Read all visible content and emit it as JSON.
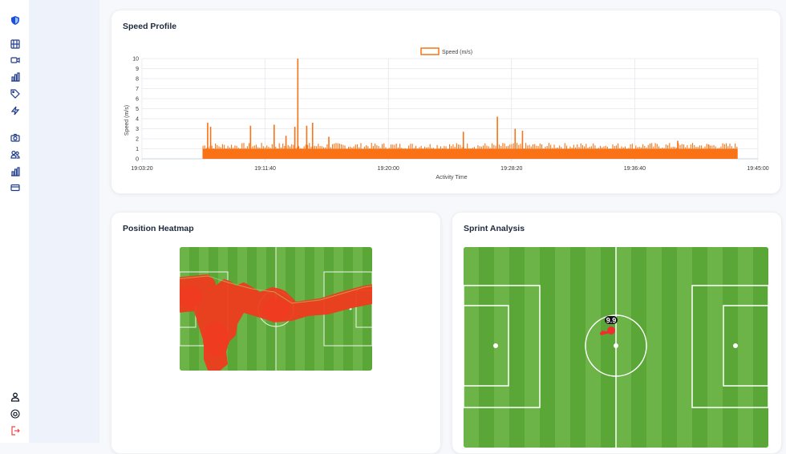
{
  "sidebar": {
    "items": [
      {
        "icon": "shield-logo-icon"
      },
      {
        "icon": "film-icon"
      },
      {
        "icon": "video-icon"
      },
      {
        "icon": "bar-chart-icon"
      },
      {
        "icon": "tag-icon"
      },
      {
        "icon": "lightning-icon"
      },
      {
        "icon": "camera-icon"
      },
      {
        "icon": "users-icon"
      },
      {
        "icon": "bar-chart-alt-icon"
      },
      {
        "icon": "credit-card-icon"
      },
      {
        "icon": "user-icon"
      },
      {
        "icon": "football-icon"
      },
      {
        "icon": "logout-icon"
      }
    ]
  },
  "speed_card": {
    "title": "Speed Profile"
  },
  "heatmap_card": {
    "title": "Position Heatmap"
  },
  "sprint_card": {
    "title": "Sprint Analysis",
    "marker_label": "9.9"
  },
  "colors": {
    "accent": "#f97316",
    "heat": "#ef3b1f",
    "pitch_dark": "#5aa637",
    "pitch_light": "#6cb447"
  },
  "chart_data": {
    "type": "bar",
    "legend": "Speed (m/s)",
    "xlabel": "Activity Time",
    "ylabel": "Speed (m/s)",
    "ylim": [
      0,
      10
    ],
    "yticks": [
      "0",
      "1",
      "2",
      "3",
      "4",
      "5",
      "6",
      "7",
      "8",
      "9",
      "10"
    ],
    "xticks": [
      "19:03:20",
      "19:11:40",
      "19:20:00",
      "19:28:20",
      "19:36:40",
      "19:45:00"
    ],
    "x_range_minutes": [
      0,
      41.67
    ],
    "series": [
      {
        "name": "Speed (m/s)",
        "start_minute": 4.1,
        "end_minute": 40.3,
        "baseline": 1.0
      },
      {
        "name": "peaks",
        "x": [
          4.4,
          4.6,
          7.3,
          8.9,
          9.7,
          10.3,
          10.5,
          11.1,
          11.5,
          12.6,
          21.7,
          24.0,
          25.2,
          25.7,
          36.2,
          38.3
        ],
        "y": [
          3.6,
          3.2,
          3.3,
          3.4,
          2.3,
          3.2,
          10.0,
          3.3,
          3.6,
          2.2,
          2.7,
          4.2,
          3.0,
          2.8,
          1.8,
          1.4
        ]
      }
    ]
  }
}
